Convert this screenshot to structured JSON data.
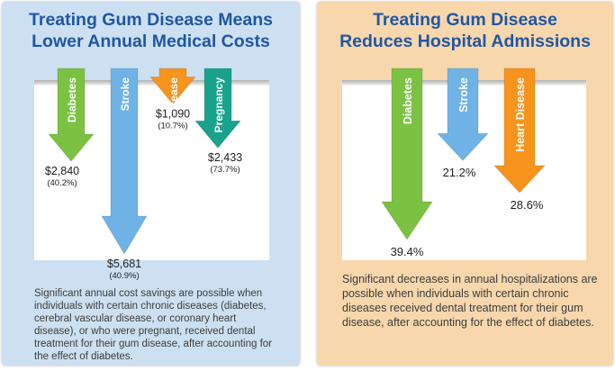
{
  "left_panel": {
    "title_line1": "Treating Gum Disease Means",
    "title_line2": "Lower Annual Medical Costs",
    "description": "Significant annual cost savings are possible when individuals with certain chronic diseases (diabetes, cerebral vascular disease, or coronary heart disease), or who were pregnant, received dental treatment for their gum disease, after accounting for the effect of diabetes."
  },
  "right_panel": {
    "title_line1": "Treating Gum Disease",
    "title_line2": "Reduces Hospital Admissions",
    "description": "Significant decreases in annual hospitalizations are possible when individuals with certain chronic diseases received dental treatment for their gum disease, after accounting for the effect of diabetes."
  },
  "colors": {
    "title": "#1f57a3",
    "diabetes": "#7cc242",
    "stroke": "#6fb3e6",
    "heart_disease": "#f7941d",
    "pregnancy": "#1aa38c",
    "left_background": "#cde0f1",
    "right_background": "#f8d7ad"
  },
  "chart_data": [
    {
      "type": "bar",
      "title": "Treating Gum Disease Means Lower Annual Medical Costs",
      "categories": [
        "Diabetes",
        "Stroke",
        "Heart Disease",
        "Pregnancy"
      ],
      "values": [
        2840,
        5681,
        1090,
        2433
      ],
      "value_labels": [
        "$2,840",
        "$5,681",
        "$1,090",
        "$2,433"
      ],
      "percent_labels": [
        "(40.2%)",
        "(40.9%)",
        "(10.7%)",
        "(73.7%)"
      ],
      "colors": [
        "#7cc242",
        "#6fb3e6",
        "#f7941d",
        "#1aa38c"
      ],
      "direction": "down",
      "grid": false
    },
    {
      "type": "bar",
      "title": "Treating Gum Disease Reduces Hospital Admissions",
      "categories": [
        "Diabetes",
        "Stroke",
        "Heart Disease"
      ],
      "values": [
        39.4,
        21.2,
        28.6
      ],
      "value_labels": [
        "39.4%",
        "21.2%",
        "28.6%"
      ],
      "colors": [
        "#7cc242",
        "#6fb3e6",
        "#f7941d"
      ],
      "direction": "down",
      "grid": false
    }
  ]
}
